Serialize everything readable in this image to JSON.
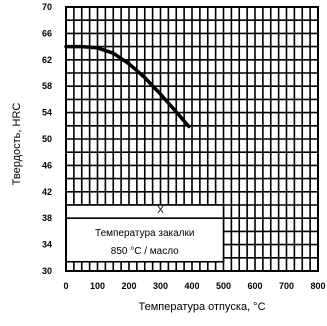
{
  "chart_data": {
    "type": "line",
    "xlabel": "Температура отпуска, °C",
    "ylabel": "Твердость, HRC",
    "xlim": [
      0,
      800
    ],
    "ylim": [
      30,
      70
    ],
    "x_ticks": [
      "0",
      "100",
      "200",
      "300",
      "400",
      "500",
      "600",
      "700",
      "800"
    ],
    "y_ticks": [
      "30",
      "34",
      "38",
      "42",
      "46",
      "50",
      "54",
      "58",
      "62",
      "66",
      "70"
    ],
    "grid": true,
    "series": [
      {
        "x": [
          0,
          50,
          100,
          150,
          200,
          250,
          300,
          350,
          390
        ],
        "values": [
          64.0,
          64.0,
          63.8,
          63.0,
          61.4,
          59.3,
          56.8,
          54.1,
          51.9
        ]
      }
    ],
    "annotations": {
      "box_mark": "X",
      "box_line1": "Температура закалки",
      "box_line2": "850 °C / масло"
    }
  }
}
